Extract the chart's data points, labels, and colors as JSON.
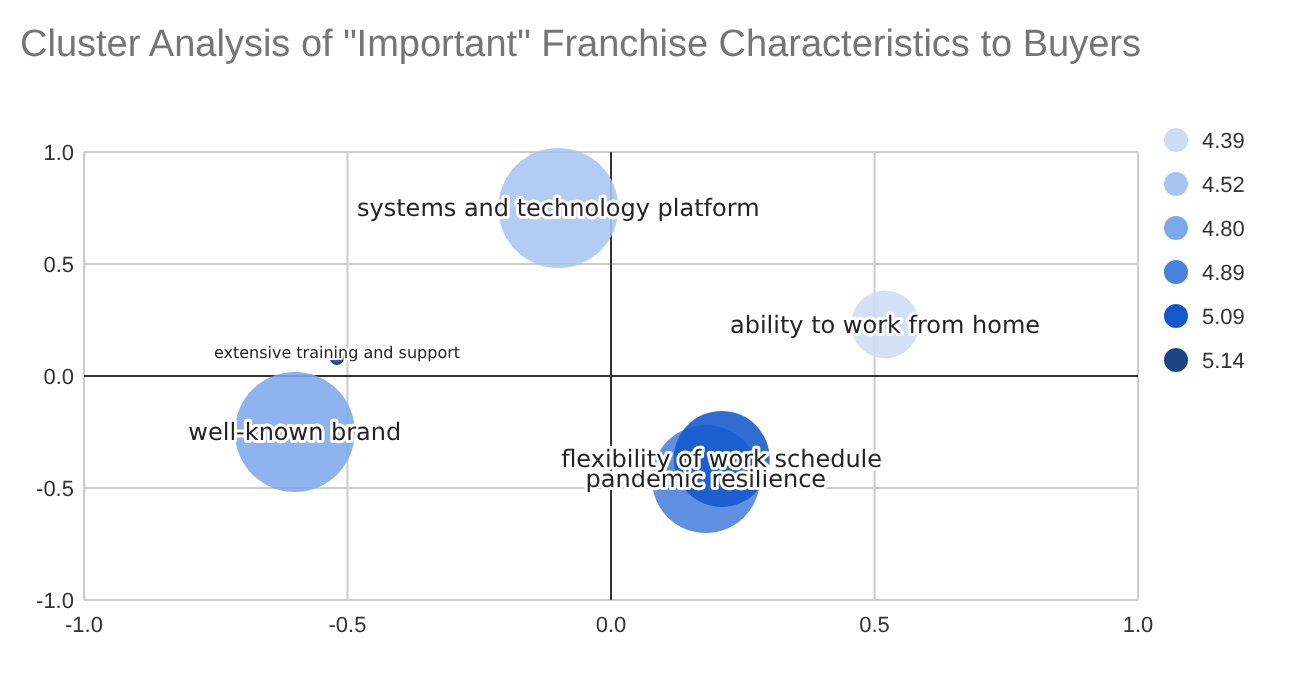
{
  "chart_data": {
    "type": "bubble",
    "title": "Cluster Analysis of \"Important\" Franchise Characteristics to Buyers",
    "xlim": [
      -1,
      1
    ],
    "ylim": [
      -1,
      1
    ],
    "xticks": [
      {
        "value": -1,
        "label": "-1.0"
      },
      {
        "value": -0.5,
        "label": "-0.5"
      },
      {
        "value": 0,
        "label": "0.0"
      },
      {
        "value": 0.5,
        "label": "0.5"
      },
      {
        "value": 1,
        "label": "1.0"
      }
    ],
    "yticks": [
      {
        "value": -1,
        "label": "-1.0"
      },
      {
        "value": -0.5,
        "label": "-0.5"
      },
      {
        "value": 0,
        "label": "0.0"
      },
      {
        "value": 0.5,
        "label": "0.5"
      },
      {
        "value": 1,
        "label": "1.0"
      }
    ],
    "grid": true,
    "legend": "right",
    "series": [
      {
        "name": "4.39",
        "color": "#cddcf5",
        "x": [
          0.52
        ],
        "values": [
          0.23
        ],
        "sizes": [
          0.32
        ]
      },
      {
        "name": "4.52",
        "color": "#a8c5f2",
        "x": [
          -0.1
        ],
        "values": [
          0.75
        ],
        "sizes": [
          1
        ]
      },
      {
        "name": "4.80",
        "color": "#7ea8ec",
        "x": [
          -0.6
        ],
        "values": [
          -0.25
        ],
        "sizes": [
          1
        ]
      },
      {
        "name": "4.89",
        "color": "#4a82dd",
        "x": [
          0.18
        ],
        "values": [
          -0.46
        ],
        "sizes": [
          0.81
        ]
      },
      {
        "name": "5.09",
        "color": "#1558cc",
        "x": [
          0.21
        ],
        "values": [
          -0.37
        ],
        "sizes": [
          0.64
        ]
      },
      {
        "name": "5.14",
        "color": "#1c4587",
        "x": [
          -0.52
        ],
        "values": [
          0.08
        ],
        "sizes": [
          0.01
        ]
      }
    ],
    "annotations": [
      {
        "text": "ability to work from home",
        "x": 0.52,
        "y": 0.23
      },
      {
        "text": "systems and technology platform",
        "x": -0.1,
        "y": 0.75
      },
      {
        "text": "well-known brand",
        "x": -0.6,
        "y": -0.25
      },
      {
        "text": "pandemic resilience",
        "x": 0.18,
        "y": -0.46
      },
      {
        "text": "flexibility of work schedule",
        "x": 0.21,
        "y": -0.37
      },
      {
        "text": "extensive training and support",
        "x": -0.52,
        "y": 0.08
      }
    ]
  }
}
